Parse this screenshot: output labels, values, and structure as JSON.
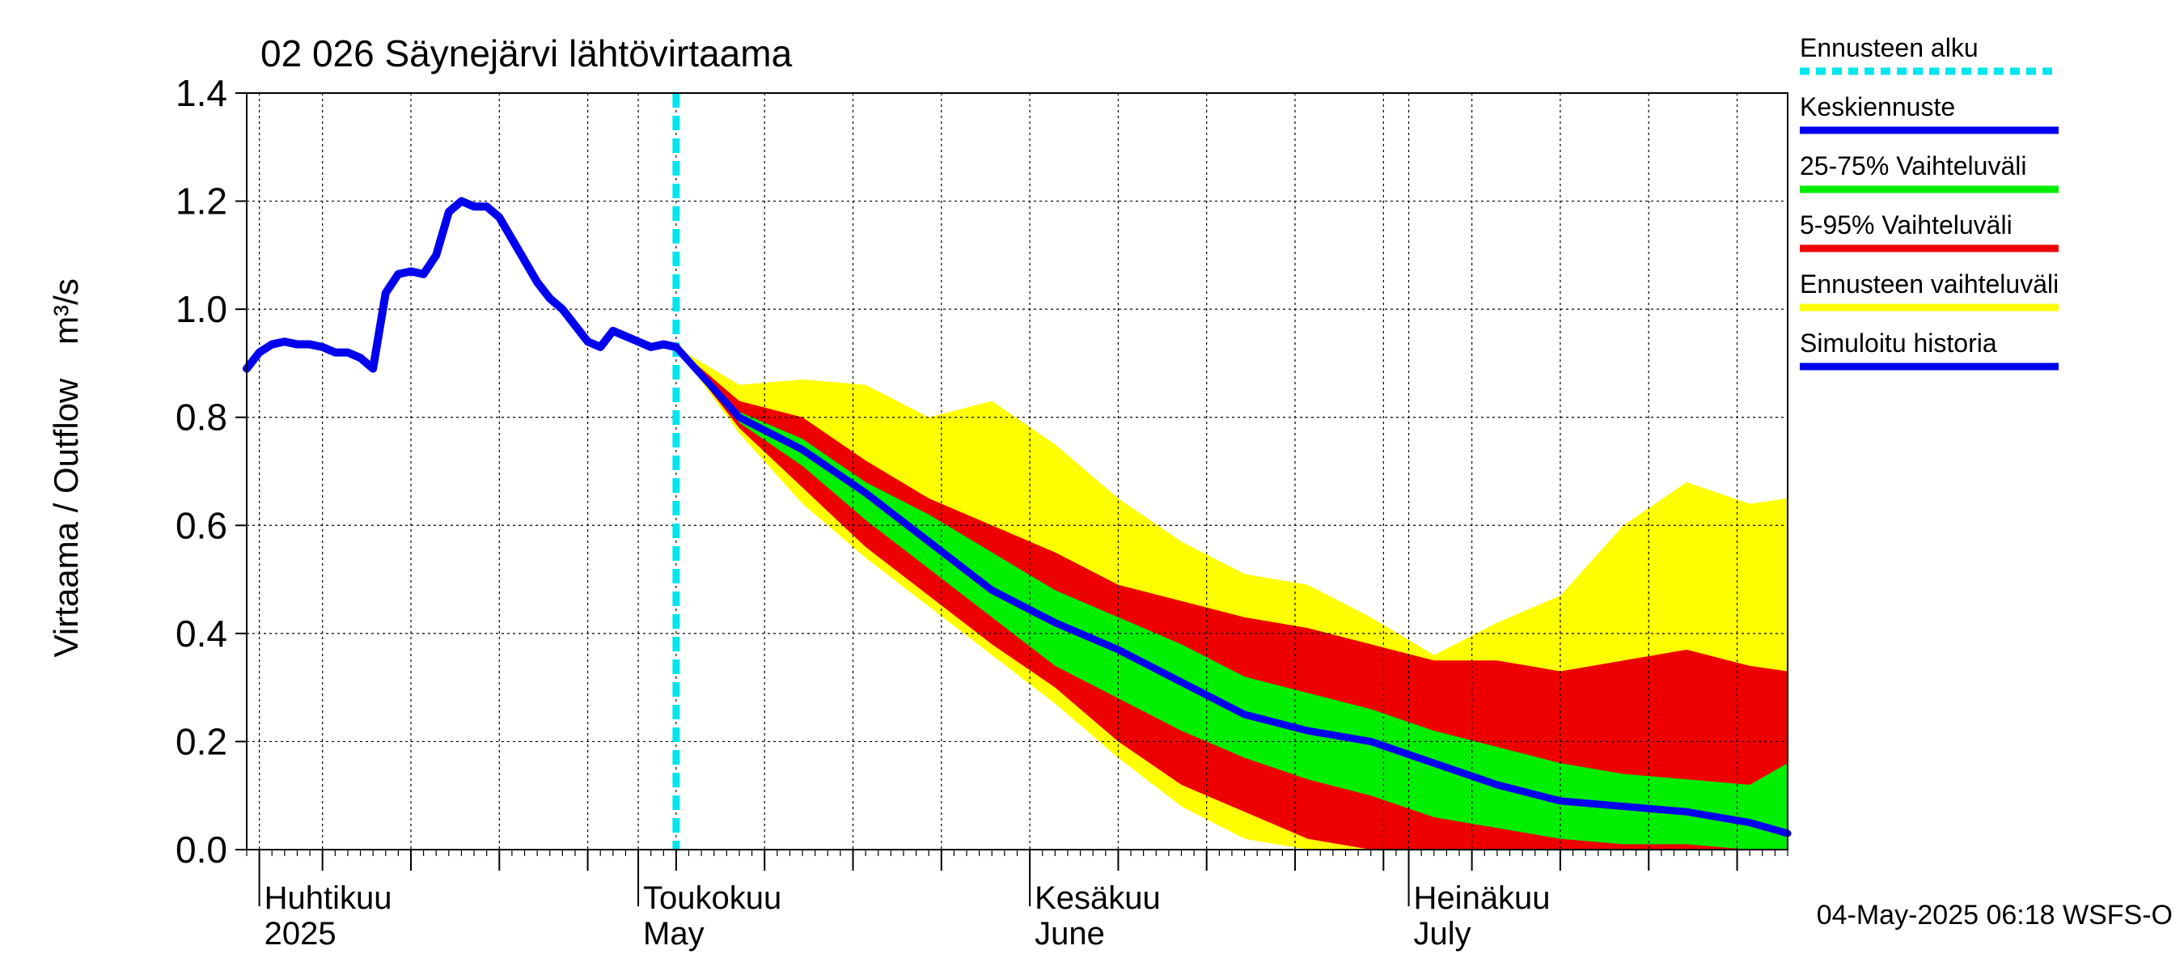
{
  "chart_data": {
    "type": "area",
    "title": "02 026 Säynejärvi lähtövirtaama",
    "ylabel": "Virtaama / Outflow",
    "yunit": "m³/s",
    "ylim": [
      0,
      1.4
    ],
    "yticks": [
      "0.0",
      "0.2",
      "0.4",
      "0.6",
      "0.8",
      "1.0",
      "1.2",
      "1.4"
    ],
    "x_start": "2025-03-31",
    "x_end": "2025-07-31",
    "forecast_start": "2025-05-04",
    "grid": true,
    "legend_position": "right",
    "month_labels": [
      {
        "date": "2025-04-01",
        "fi": "Huhtikuu",
        "en": "2025"
      },
      {
        "date": "2025-05-01",
        "fi": "Toukokuu",
        "en": "May"
      },
      {
        "date": "2025-06-01",
        "fi": "Kesäkuu",
        "en": "June"
      },
      {
        "date": "2025-07-01",
        "fi": "Heinäkuu",
        "en": "July"
      }
    ],
    "legend": [
      {
        "label": "Ennusteen alku",
        "color": "#00e5ee",
        "style": "dashed"
      },
      {
        "label": "Keskiennuste",
        "color": "#0000ee",
        "style": "solid"
      },
      {
        "label": "25-75% Vaihteluväli",
        "color": "#00ee00",
        "style": "solid"
      },
      {
        "label": "5-95% Vaihteluväli",
        "color": "#ee0000",
        "style": "solid"
      },
      {
        "label": "Ennusteen vaihteluväli",
        "color": "#ffff00",
        "style": "solid"
      },
      {
        "label": "Simuloitu historia",
        "color": "#0000ee",
        "style": "solid"
      }
    ],
    "colors": {
      "history": "#0000ee",
      "median": "#0000ee",
      "band_25_75": "#00ee00",
      "band_5_95": "#ee0000",
      "band_full": "#ffff00",
      "forecast_start": "#00e5ee"
    },
    "history": {
      "x": [
        "2025-03-31",
        "2025-04-01",
        "2025-04-02",
        "2025-04-03",
        "2025-04-04",
        "2025-04-05",
        "2025-04-06",
        "2025-04-07",
        "2025-04-08",
        "2025-04-09",
        "2025-04-10",
        "2025-04-11",
        "2025-04-12",
        "2025-04-13",
        "2025-04-14",
        "2025-04-15",
        "2025-04-16",
        "2025-04-17",
        "2025-04-18",
        "2025-04-19",
        "2025-04-20",
        "2025-04-21",
        "2025-04-22",
        "2025-04-23",
        "2025-04-24",
        "2025-04-25",
        "2025-04-26",
        "2025-04-27",
        "2025-04-28",
        "2025-04-29",
        "2025-04-30",
        "2025-05-01",
        "2025-05-02",
        "2025-05-03",
        "2025-05-04"
      ],
      "y": [
        0.89,
        0.92,
        0.935,
        0.94,
        0.935,
        0.935,
        0.93,
        0.92,
        0.92,
        0.91,
        0.89,
        1.03,
        1.065,
        1.07,
        1.065,
        1.1,
        1.18,
        1.2,
        1.19,
        1.19,
        1.17,
        1.13,
        1.09,
        1.05,
        1.02,
        1.0,
        0.97,
        0.94,
        0.93,
        0.96,
        0.95,
        0.94,
        0.93,
        0.935,
        0.93
      ]
    },
    "forecast": {
      "x": [
        "2025-05-04",
        "2025-05-09",
        "2025-05-14",
        "2025-05-19",
        "2025-05-24",
        "2025-05-29",
        "2025-06-03",
        "2025-06-08",
        "2025-06-13",
        "2025-06-18",
        "2025-06-23",
        "2025-06-28",
        "2025-07-03",
        "2025-07-08",
        "2025-07-13",
        "2025-07-18",
        "2025-07-23",
        "2025-07-28",
        "2025-07-31"
      ],
      "median": [
        0.93,
        0.8,
        0.74,
        0.66,
        0.57,
        0.48,
        0.42,
        0.37,
        0.31,
        0.25,
        0.22,
        0.2,
        0.16,
        0.12,
        0.09,
        0.08,
        0.07,
        0.05,
        0.03
      ],
      "p25": [
        0.93,
        0.79,
        0.71,
        0.61,
        0.52,
        0.43,
        0.34,
        0.28,
        0.22,
        0.17,
        0.13,
        0.1,
        0.06,
        0.04,
        0.02,
        0.01,
        0.01,
        0.0,
        0.0
      ],
      "p75": [
        0.93,
        0.81,
        0.76,
        0.68,
        0.62,
        0.55,
        0.48,
        0.43,
        0.38,
        0.32,
        0.29,
        0.26,
        0.22,
        0.19,
        0.16,
        0.14,
        0.13,
        0.12,
        0.16
      ],
      "p05": [
        0.93,
        0.78,
        0.67,
        0.56,
        0.47,
        0.38,
        0.3,
        0.2,
        0.12,
        0.07,
        0.02,
        0.0,
        0.0,
        0.0,
        0.0,
        0.0,
        0.0,
        0.0,
        0.0
      ],
      "p95": [
        0.93,
        0.83,
        0.8,
        0.72,
        0.65,
        0.6,
        0.55,
        0.49,
        0.46,
        0.43,
        0.41,
        0.38,
        0.35,
        0.35,
        0.33,
        0.35,
        0.37,
        0.34,
        0.33
      ],
      "min": [
        0.93,
        0.77,
        0.64,
        0.54,
        0.45,
        0.36,
        0.27,
        0.17,
        0.08,
        0.02,
        0.0,
        0.0,
        0.0,
        0.0,
        0.0,
        0.0,
        0.0,
        0.0,
        0.0
      ],
      "max": [
        0.93,
        0.86,
        0.87,
        0.86,
        0.8,
        0.83,
        0.75,
        0.65,
        0.57,
        0.51,
        0.49,
        0.43,
        0.36,
        0.42,
        0.47,
        0.6,
        0.68,
        0.64,
        0.65
      ]
    },
    "footer": "04-May-2025 06:18 WSFS-O"
  }
}
